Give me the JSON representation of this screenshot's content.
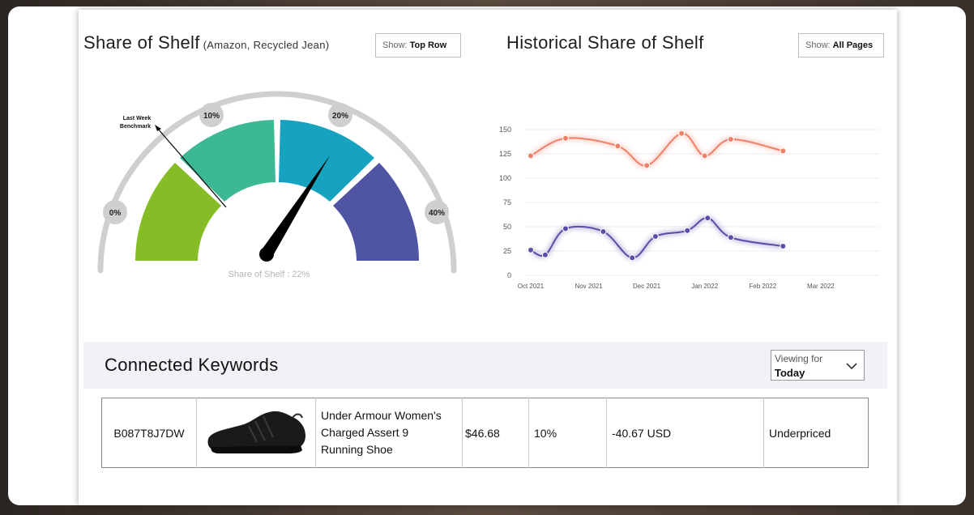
{
  "share_panel": {
    "title": "Share of Shelf",
    "subtitle": "(Amazon, Recycled Jean)",
    "show_label": "Show:",
    "show_value": "Top Row",
    "gauge": {
      "ticks": [
        "0%",
        "10%",
        "20%",
        "40%"
      ],
      "benchmark_label_1": "Last Week",
      "benchmark_label_2": "Benchmark",
      "readout": "Share of Shelf : 22%",
      "value_percent": 22,
      "segment_colors": [
        "#86bc25",
        "#3db894",
        "#17a3c0",
        "#4f55a2"
      ]
    }
  },
  "history_panel": {
    "title": "Historical Share of Shelf",
    "show_label": "Show:",
    "show_value": "All Pages"
  },
  "chart_data": {
    "type": "line",
    "x": [
      "Oct 2021",
      "Nov 2021",
      "Dec 2021",
      "Jan 2022",
      "Feb 2022",
      "Mar 2022"
    ],
    "yticks": [
      0,
      25,
      50,
      75,
      100,
      125,
      150
    ],
    "ylim": [
      0,
      150
    ],
    "grid": true,
    "series": [
      {
        "color": "#f08069",
        "points": [
          [
            0,
            123
          ],
          [
            0.6,
            141
          ],
          [
            1.5,
            133
          ],
          [
            2.0,
            113
          ],
          [
            2.6,
            146
          ],
          [
            3.0,
            123
          ],
          [
            3.45,
            140
          ],
          [
            4.35,
            128
          ]
        ]
      },
      {
        "color": "#5a4fa8",
        "points": [
          [
            0,
            26
          ],
          [
            0.25,
            21
          ],
          [
            0.6,
            48
          ],
          [
            1.25,
            45
          ],
          [
            1.75,
            18
          ],
          [
            2.15,
            40
          ],
          [
            2.7,
            46
          ],
          [
            3.05,
            59
          ],
          [
            3.45,
            39
          ],
          [
            4.35,
            30
          ]
        ]
      }
    ]
  },
  "keywords": {
    "title": "Connected Keywords",
    "viewing_label": "Viewing for",
    "viewing_value": "Today",
    "rows": [
      {
        "asin": "B087T8J7DW",
        "image_icon": "shoe-icon",
        "name_line1": "Under Armour Women's",
        "name_line2": "Charged Assert 9",
        "name_line3": "Running Shoe",
        "price": "$46.68",
        "share": "10%",
        "diff": "-40.67 USD",
        "status": "Underpriced"
      }
    ]
  }
}
